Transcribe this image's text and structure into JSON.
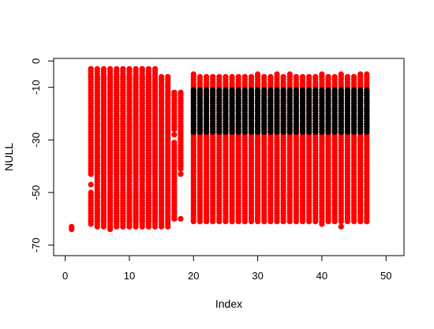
{
  "chart_data": {
    "type": "scatter",
    "xlabel": "Index",
    "ylabel": "NULL",
    "xlim": [
      -1.8,
      52.8
    ],
    "ylim": [
      -74,
      1
    ],
    "x_ticks": [
      0,
      10,
      20,
      30,
      40,
      50
    ],
    "y_ticks": [
      0,
      -10,
      -30,
      -50,
      -70
    ],
    "grid": false,
    "legend": "none",
    "marker": "filled-circle",
    "series": [
      {
        "color": "#ff0000",
        "point_rows": [
          {
            "x": 1,
            "y": [
              -63,
              -64
            ]
          },
          {
            "x": 4,
            "y": [
              -3,
              -6,
              -47,
              -61,
              -62
            ]
          },
          {
            "x": 7,
            "y": [
              -63,
              -64
            ]
          },
          {
            "x": 12,
            "y": [
              -3,
              -45
            ]
          },
          {
            "x": 17,
            "y": [
              -12,
              -28,
              -60
            ]
          },
          {
            "x": 18,
            "y": [
              -12,
              -15,
              -25,
              -40,
              -43,
              -60
            ]
          },
          {
            "x": 20,
            "y": [
              -5,
              -28,
              -31,
              -42
            ]
          },
          {
            "x": 30,
            "y": [
              -5,
              -31,
              -41,
              -60
            ]
          },
          {
            "x": 33,
            "y": [
              -5,
              -31,
              -43,
              -51,
              -58
            ]
          },
          {
            "x": 35,
            "y": [
              -5,
              -51
            ]
          },
          {
            "x": 40,
            "y": [
              -5,
              -29,
              -62
            ]
          },
          {
            "x": 43,
            "y": [
              -5,
              -34,
              -63
            ]
          },
          {
            "x": 46,
            "y": [
              -5,
              -30,
              -57,
              -60
            ]
          },
          {
            "x": 47,
            "y": [
              -5,
              -40,
              -61
            ]
          }
        ],
        "column_spans": [
          {
            "x": [
              4,
              14
            ],
            "y": [
              -3,
              -61
            ],
            "gaps": [
              [
                -44,
                -49
              ]
            ]
          },
          {
            "x": [
              5,
              16
            ],
            "y": [
              -6,
              -63
            ]
          },
          {
            "x": [
              17,
              17
            ],
            "y": [
              -12,
              -60
            ],
            "gaps": [
              [
                -27,
                -30
              ]
            ]
          },
          {
            "x": [
              18,
              18
            ],
            "y": [
              -12,
              -41
            ]
          },
          {
            "x": [
              20,
              47
            ],
            "y": [
              -6,
              -61
            ]
          }
        ]
      },
      {
        "color": "#000000",
        "column_spans": [
          {
            "x": [
              20,
              47
            ],
            "y": [
              -11,
              -27
            ]
          }
        ]
      }
    ]
  }
}
